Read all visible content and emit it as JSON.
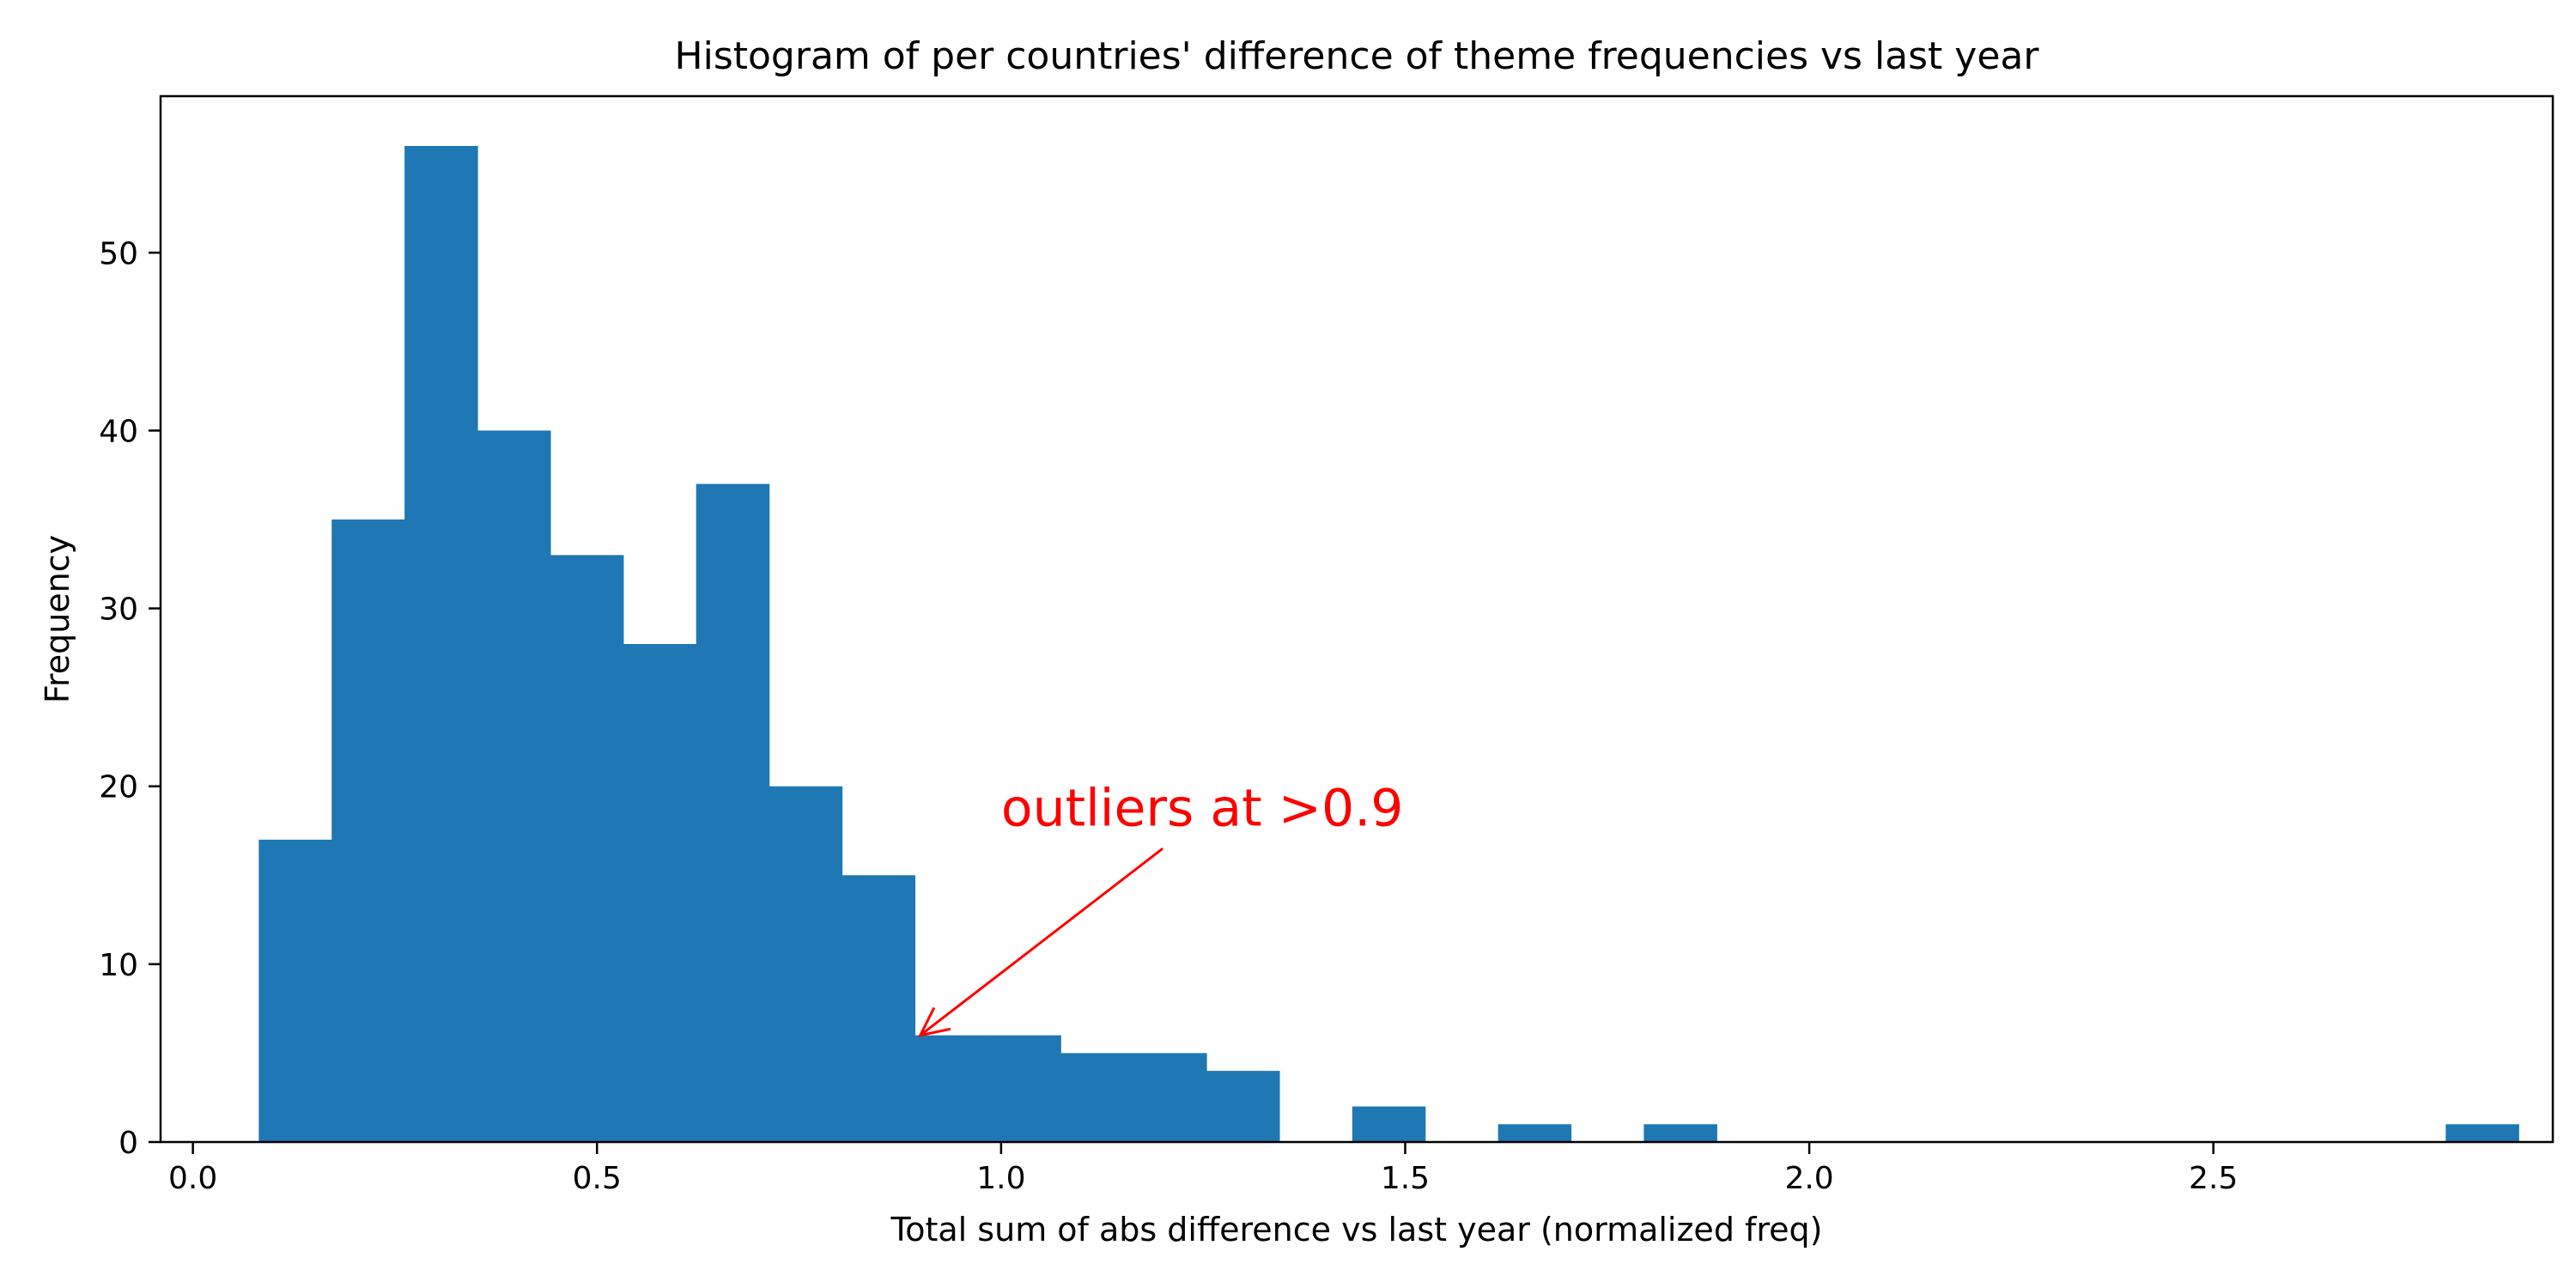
{
  "chart_data": {
    "type": "bar",
    "title": "Histogram of per countries' difference of theme frequencies vs last year",
    "xlabel": "Total sum of abs difference vs last year (normalized freq)",
    "ylabel": "Frequency",
    "xlim": [
      -0.04,
      2.92
    ],
    "ylim": [
      0,
      58.8
    ],
    "xticks": [
      {
        "value": 0.0,
        "label": "0.0"
      },
      {
        "value": 0.5,
        "label": "0.5"
      },
      {
        "value": 1.0,
        "label": "1.0"
      },
      {
        "value": 1.5,
        "label": "1.5"
      },
      {
        "value": 2.0,
        "label": "2.0"
      },
      {
        "value": 2.5,
        "label": "2.5"
      }
    ],
    "yticks": [
      {
        "value": 0,
        "label": "0"
      },
      {
        "value": 10,
        "label": "10"
      },
      {
        "value": 20,
        "label": "20"
      },
      {
        "value": 30,
        "label": "30"
      },
      {
        "value": 40,
        "label": "40"
      },
      {
        "value": 50,
        "label": "50"
      }
    ],
    "bin_start": 0.0815,
    "bin_width": 0.0902,
    "values": [
      17,
      35,
      56,
      40,
      33,
      28,
      37,
      20,
      15,
      6,
      6,
      5,
      5,
      4,
      0,
      2,
      0,
      1,
      0,
      1,
      0,
      0,
      0,
      0,
      0,
      0,
      0,
      0,
      0,
      0,
      1
    ],
    "bar_color": "#1f77b4",
    "grid": false,
    "annotation": {
      "text": "outliers at >0.9",
      "color": "#ff0000",
      "text_x": 1.0,
      "text_y": 17.8,
      "arrow_from": [
        1.2,
        16.5
      ],
      "arrow_to": [
        0.9,
        6.0
      ]
    }
  }
}
